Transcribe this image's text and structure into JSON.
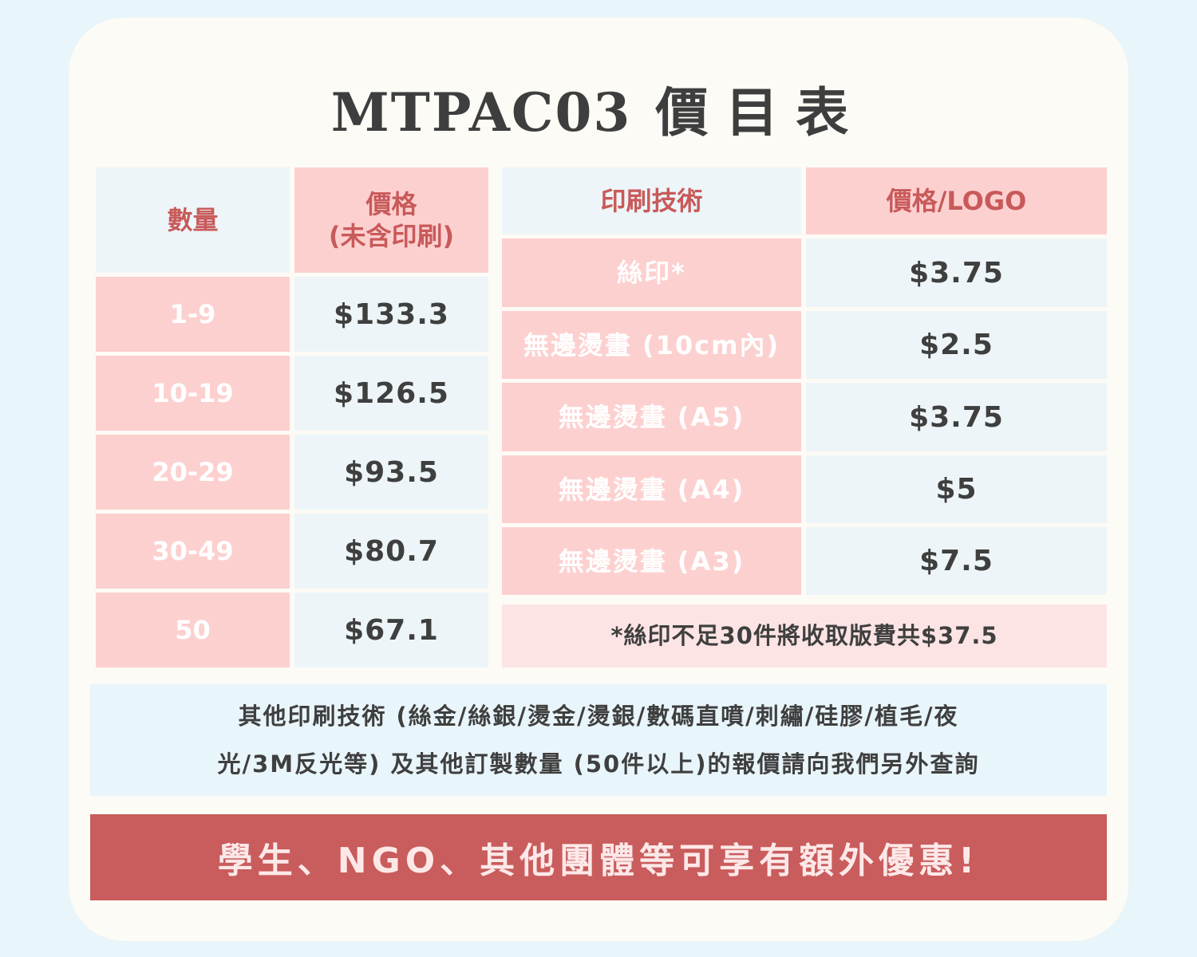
{
  "title": {
    "code": "MTPAC03",
    "label": "價目表"
  },
  "qty_table": {
    "header_qty": "數量",
    "header_price_line1": "價格",
    "header_price_line2": "(未含印刷)",
    "rows": [
      {
        "qty": "1-9",
        "price": "$133.3"
      },
      {
        "qty": "10-19",
        "price": "$126.5"
      },
      {
        "qty": "20-29",
        "price": "$93.5"
      },
      {
        "qty": "30-49",
        "price": "$80.7"
      },
      {
        "qty": "50",
        "price": "$67.1"
      }
    ]
  },
  "print_table": {
    "header_tech": "印刷技術",
    "header_price": "價格/LOGO",
    "rows": [
      {
        "tech": "絲印*",
        "price": "$3.75"
      },
      {
        "tech": "無邊燙畫 (10cm內)",
        "price": "$2.5"
      },
      {
        "tech": "無邊燙畫 (A5)",
        "price": "$3.75"
      },
      {
        "tech": "無邊燙畫 (A4)",
        "price": "$5"
      },
      {
        "tech": "無邊燙畫 (A3)",
        "price": "$7.5"
      }
    ],
    "note": "*絲印不足30件將收取版費共$37.5"
  },
  "other_info": {
    "line1": "其他印刷技術 (絲金/絲銀/燙金/燙銀/數碼直噴/刺繡/硅膠/植毛/夜",
    "line2": "光/3M反光等) 及其他訂製數量 (50件以上)的報價請向我們另外查詢"
  },
  "banner": "學生、NGO、其他團體等可享有額外優惠!",
  "colors": {
    "background": "#e8f5fb",
    "card": "#fdfbf5",
    "pink": "#fdd0d0",
    "light_blue": "#edf5f8",
    "header_red": "#c85a5a",
    "banner_red": "#c95c5c"
  }
}
